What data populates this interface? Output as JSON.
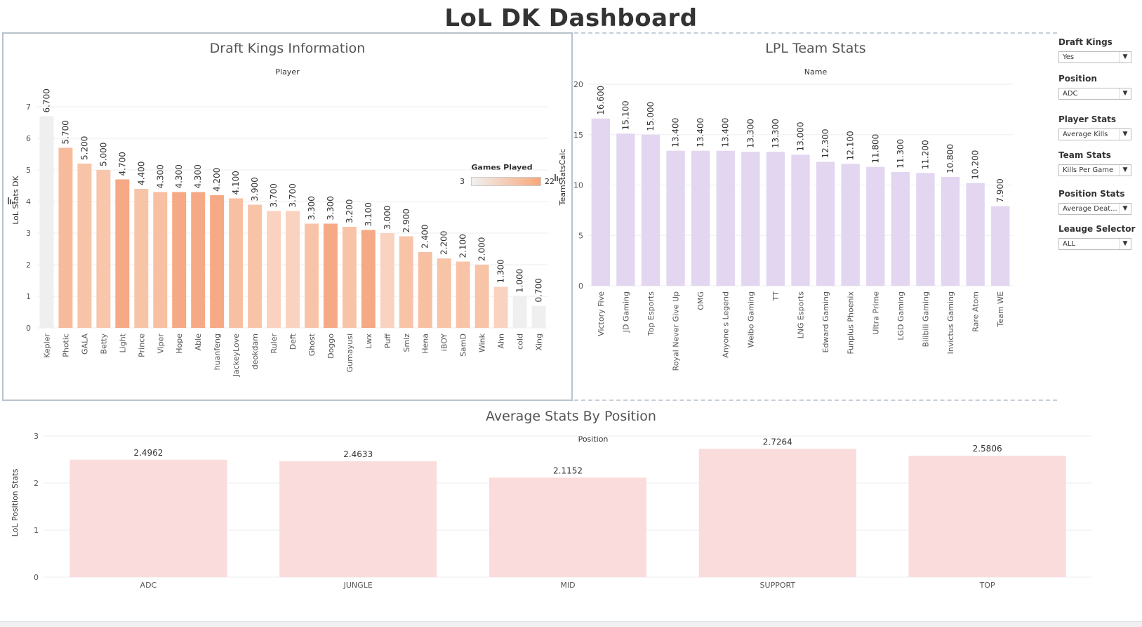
{
  "dashboard": {
    "title": "LoL DK Dashboard"
  },
  "dk_panel": {
    "title": "Draft Kings Information",
    "column_header": "Player",
    "y_axis_label": "LoL Stats DK"
  },
  "lpl_panel": {
    "title": "LPL Team Stats",
    "column_header": "Name",
    "y_axis_label": "TeamStatsCalc"
  },
  "position_panel": {
    "title": "Average Stats By Position",
    "column_header": "Position",
    "y_axis_label": "LoL Position Stats"
  },
  "legend": {
    "title": "Games Played",
    "min": "3",
    "max": "22",
    "color_low": "#f1f1f1",
    "color_high": "#f7a77a"
  },
  "filters": [
    {
      "label": "Draft Kings",
      "value": "Yes"
    },
    {
      "label": "Position",
      "value": "ADC"
    },
    {
      "label": "Player Stats",
      "value": "Average Kills"
    },
    {
      "label": "Team Stats",
      "value": "Kills Per Game"
    },
    {
      "label": "Position Stats",
      "value": "Average Deat..."
    },
    {
      "label": "Leauge Selector",
      "value": "ALL"
    }
  ],
  "chart_data": [
    {
      "type": "bar",
      "title": "Draft Kings Information",
      "xlabel": "Player",
      "ylabel": "LoL Stats DK",
      "ylim": [
        0,
        7
      ],
      "yticks": [
        0,
        1,
        2,
        3,
        4,
        5,
        6,
        7
      ],
      "color_legend": "Games Played",
      "categories": [
        "Kepler",
        "Photic",
        "GALA",
        "Betty",
        "Light",
        "Prince",
        "Viper",
        "Hope",
        "Able",
        "huanfeng",
        "JackeyLove",
        "deokdam",
        "Ruler",
        "Deft",
        "Ghost",
        "Doggo",
        "Gumayusi",
        "Lwx",
        "Puff",
        "Smlz",
        "Hena",
        "iBOY",
        "SamD",
        "Wink",
        "Ahn",
        "cold",
        "Xing"
      ],
      "values": [
        6.7,
        5.7,
        5.2,
        5.0,
        4.7,
        4.4,
        4.3,
        4.3,
        4.3,
        4.2,
        4.1,
        3.9,
        3.7,
        3.7,
        3.3,
        3.3,
        3.2,
        3.1,
        3.0,
        2.9,
        2.4,
        2.2,
        2.1,
        2.0,
        1.3,
        1.0,
        0.7
      ],
      "value_labels": [
        "6.700",
        "5.700",
        "5.200",
        "5.000",
        "4.700",
        "4.400",
        "4.300",
        "4.300",
        "4.300",
        "4.200",
        "4.100",
        "3.900",
        "3.700",
        "3.700",
        "3.300",
        "3.300",
        "3.200",
        "3.100",
        "3.000",
        "2.900",
        "2.400",
        "2.200",
        "2.100",
        "2.000",
        "1.300",
        "1.000",
        "0.700"
      ],
      "bar_colors": [
        "#efefef",
        "#f7bb9b",
        "#f8c4a8",
        "#f8c6aa",
        "#f6a985",
        "#f8c4a8",
        "#f8c0a2",
        "#f6a985",
        "#f6a985",
        "#f6a985",
        "#f8c0a2",
        "#f8c4a8",
        "#f9d3bf",
        "#f9d3bf",
        "#f8c4a8",
        "#f6a985",
        "#f8c4a8",
        "#f6a985",
        "#f9d3bf",
        "#f8c4a8",
        "#f8c0a2",
        "#f8c4a8",
        "#f8c4a8",
        "#f8c4a8",
        "#f9d3bf",
        "#efefef",
        "#efefef"
      ]
    },
    {
      "type": "bar",
      "title": "LPL Team Stats",
      "xlabel": "Name",
      "ylabel": "TeamStatsCalc",
      "ylim": [
        0,
        20
      ],
      "yticks": [
        0,
        5,
        10,
        15,
        20
      ],
      "bar_color": "#e3d6f0",
      "categories": [
        "Victory Five",
        "JD Gaming",
        "Top Esports",
        "Royal Never Give Up",
        "OMG",
        "Anyone s Legend",
        "Weibo Gaming",
        "TT",
        "LNG Esports",
        "Edward Gaming",
        "Funplus Phoenix",
        "Ultra Prime",
        "LGD Gaming",
        "Bilibili Gaming",
        "Invictus Gaming",
        "Rare Atom",
        "Team WE"
      ],
      "values": [
        16.6,
        15.1,
        15.0,
        13.4,
        13.4,
        13.4,
        13.3,
        13.3,
        13.0,
        12.3,
        12.1,
        11.8,
        11.3,
        11.2,
        10.8,
        10.2,
        7.9
      ],
      "value_labels": [
        "16.600",
        "15.100",
        "15.000",
        "13.400",
        "13.400",
        "13.400",
        "13.300",
        "13.300",
        "13.000",
        "12.300",
        "12.100",
        "11.800",
        "11.300",
        "11.200",
        "10.800",
        "10.200",
        "7.900"
      ]
    },
    {
      "type": "bar",
      "title": "Average Stats By Position",
      "xlabel": "Position",
      "ylabel": "LoL Position Stats",
      "ylim": [
        0,
        3
      ],
      "yticks": [
        0,
        1,
        2,
        3
      ],
      "bar_color": "#fadcdc",
      "categories": [
        "ADC",
        "JUNGLE",
        "MID",
        "SUPPORT",
        "TOP"
      ],
      "values": [
        2.4962,
        2.4633,
        2.1152,
        2.7264,
        2.5806
      ],
      "value_labels": [
        "2.4962",
        "2.4633",
        "2.1152",
        "2.7264",
        "2.5806"
      ]
    }
  ]
}
